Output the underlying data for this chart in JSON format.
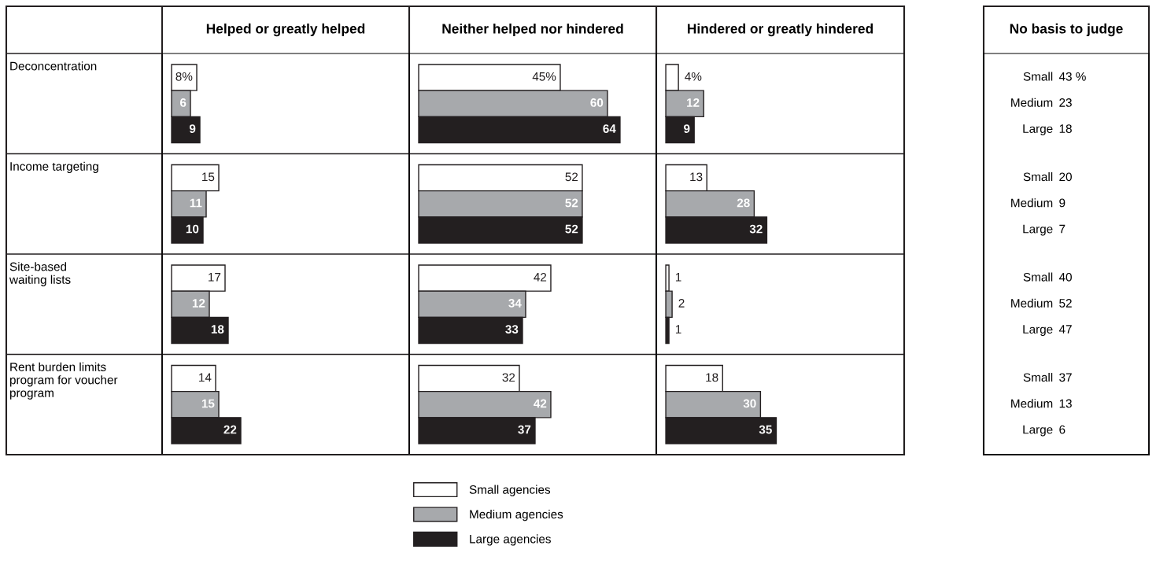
{
  "chart_data": [
    {
      "type": "bar",
      "orientation": "horizontal",
      "title": "Helped or greatly helped",
      "categories": [
        "Deconcentration",
        "Income targeting",
        "Site-based\nwaiting lists",
        "Rent burden limits\nprogram for voucher\nprogram"
      ],
      "tick_labels": "y",
      "series": [
        {
          "color": "#ffffff",
          "values": [
            8,
            15,
            17,
            14
          ],
          "value_labels": [
            "8%",
            "15",
            "17",
            "14"
          ]
        },
        {
          "color": "#a7a9ac",
          "values": [
            6,
            11,
            12,
            15
          ],
          "value_labels": [
            "6",
            "11",
            "12",
            "15"
          ]
        },
        {
          "color": "#231f20",
          "values": [
            9,
            10,
            18,
            22
          ],
          "value_labels": [
            "9",
            "10",
            "18",
            "22"
          ]
        }
      ]
    },
    {
      "type": "bar",
      "orientation": "horizontal",
      "title": "Neither helped nor hindered",
      "categories": [
        null,
        null,
        null,
        null
      ],
      "tick_labels": false,
      "legend": "bottom",
      "series": [
        {
          "name": "Small agencies",
          "color": "#ffffff",
          "values": [
            45,
            52,
            42,
            32
          ],
          "value_labels": [
            "45%",
            "52",
            "42",
            "32"
          ]
        },
        {
          "name": "Medium agencies",
          "color": "#a7a9ac",
          "values": [
            60,
            52,
            34,
            42
          ],
          "value_labels": [
            "60",
            "52",
            "34",
            "42"
          ]
        },
        {
          "name": "Large agencies",
          "color": "#231f20",
          "values": [
            64,
            52,
            33,
            37
          ],
          "value_labels": [
            "64",
            "52",
            "33",
            "37"
          ]
        }
      ]
    },
    {
      "type": "bar",
      "orientation": "horizontal",
      "title": "Hindered or greatly hindered",
      "categories": [
        null,
        null,
        null,
        null
      ],
      "tick_labels": false,
      "series": [
        {
          "color": "#ffffff",
          "values": [
            4,
            13,
            1,
            18
          ],
          "value_labels": [
            "4%",
            "13",
            "1",
            "18"
          ]
        },
        {
          "color": "#a7a9ac",
          "values": [
            12,
            28,
            2,
            30
          ],
          "value_labels": [
            "12",
            "28",
            "2",
            "30"
          ]
        },
        {
          "color": "#231f20",
          "values": [
            9,
            32,
            1,
            35
          ],
          "value_labels": [
            "9",
            "32",
            "1",
            "35"
          ]
        }
      ]
    },
    {
      "type": "other",
      "title": "No basis to judge",
      "annotations": [
        "Small",
        "43 %",
        "Medium",
        "23",
        "Large",
        "18",
        "Small",
        "20",
        "Medium",
        "9",
        "Large",
        "7",
        "Small",
        "40",
        "Medium",
        "52",
        "Large",
        "47",
        "Small",
        "37",
        "Medium",
        "13",
        "Large",
        "6"
      ]
    }
  ]
}
